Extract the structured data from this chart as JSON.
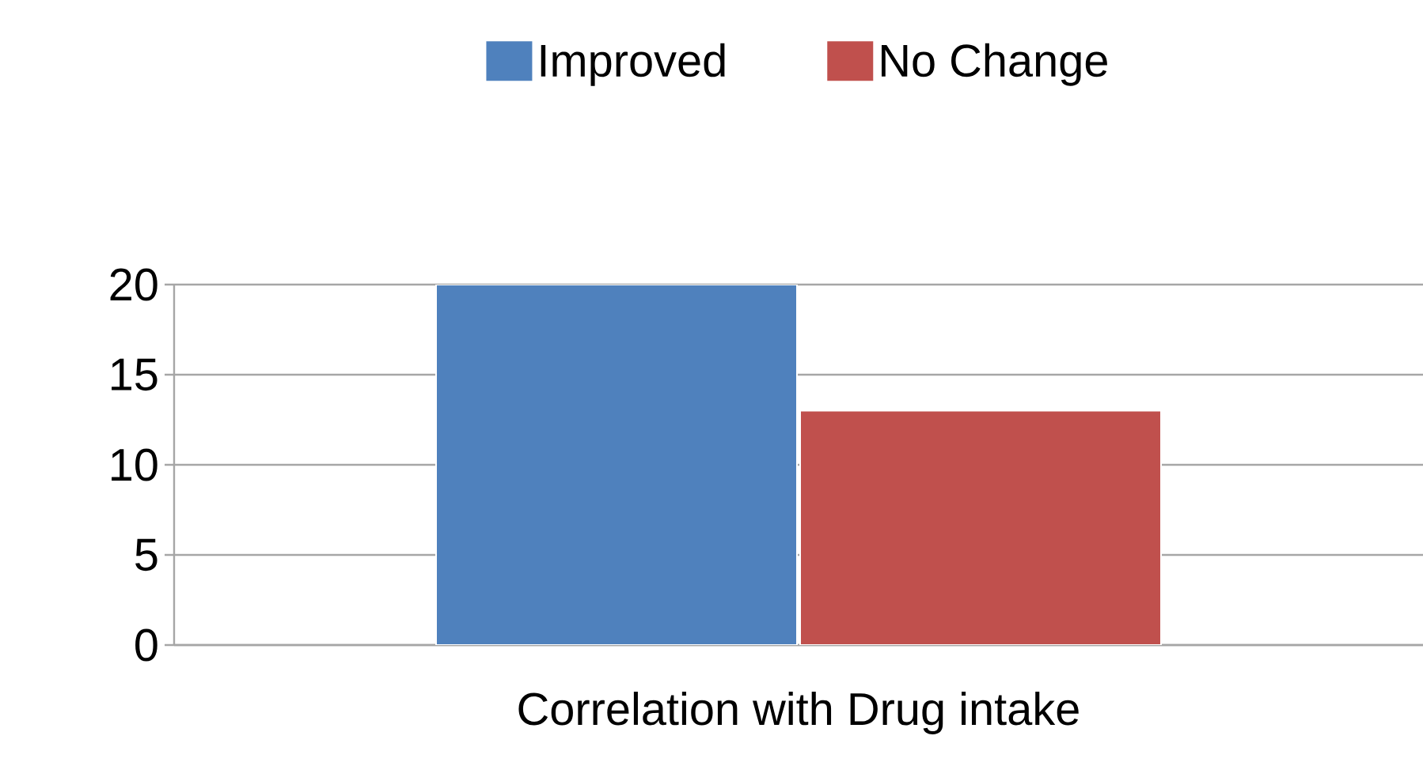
{
  "chart_data": {
    "type": "bar",
    "categories": [
      "Correlation with Drug intake"
    ],
    "series": [
      {
        "name": "Improved",
        "color": "#4f81bd",
        "values": [
          20
        ]
      },
      {
        "name": "No Change",
        "color": "#c0504d",
        "values": [
          13
        ]
      }
    ],
    "ylim": [
      0,
      20
    ],
    "yticks": [
      0,
      5,
      10,
      15,
      20
    ],
    "grid": "y",
    "legend": "top"
  }
}
